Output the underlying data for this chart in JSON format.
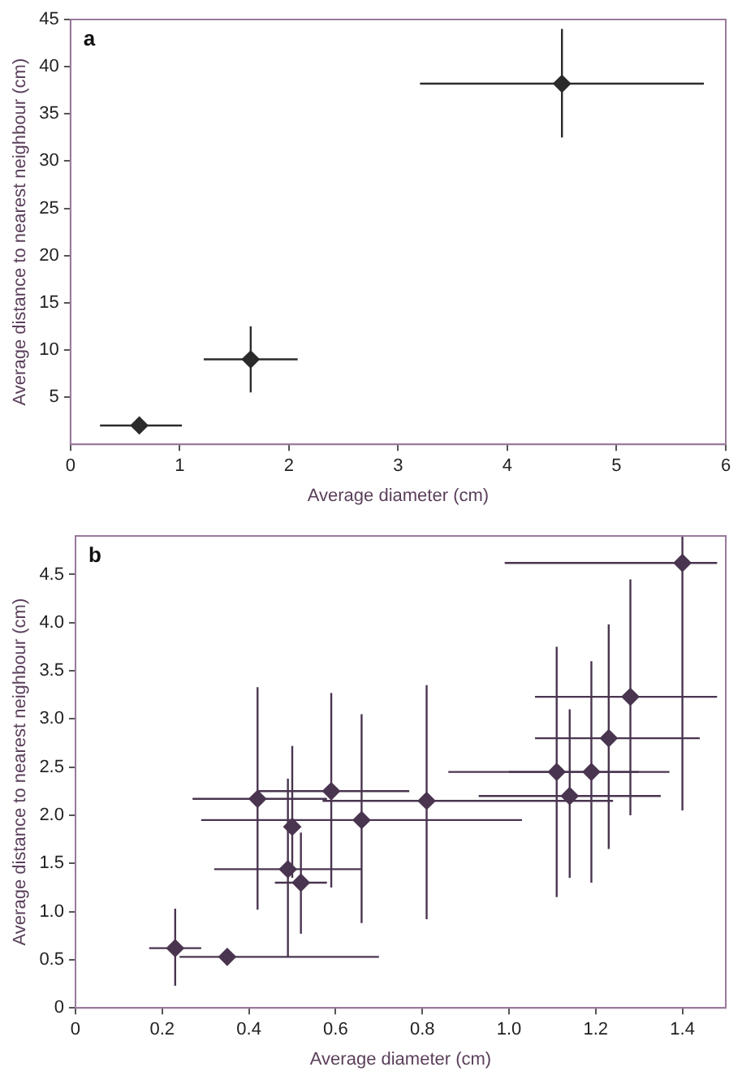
{
  "chart_data": [
    {
      "type": "scatter",
      "xlabel": "Average diameter (cm)",
      "ylabel": "Average distance to nearest neighbour (cm)",
      "annotations": [
        "a"
      ],
      "marker": "diamond",
      "grid": false,
      "legend": false,
      "xlim": [
        0,
        6
      ],
      "xticks": [
        0,
        1,
        2,
        3,
        4,
        5,
        6
      ],
      "ylim": [
        0,
        45
      ],
      "yticks": [
        5,
        10,
        15,
        20,
        25,
        30,
        35,
        40,
        45
      ],
      "series": [
        {
          "color": "#2b2b2b",
          "x": [
            0.63,
            1.65,
            4.5
          ],
          "values": [
            2.0,
            9.0,
            38.2
          ],
          "xerrors": [
            [
              0.27,
              1.02
            ],
            [
              1.22,
              2.08
            ],
            [
              3.2,
              5.8
            ]
          ],
          "errors": [
            null,
            [
              5.5,
              12.5
            ],
            [
              32.5,
              44
            ]
          ]
        }
      ]
    },
    {
      "type": "scatter",
      "xlabel": "Average diameter (cm)",
      "ylabel": "Average distance to nearest neighbour (cm)",
      "annotations": [
        "b"
      ],
      "marker": "diamond",
      "grid": false,
      "legend": false,
      "xlim": [
        0,
        1.5
      ],
      "xticks": [
        0,
        0.2,
        0.4,
        0.6,
        0.8,
        {
          "value": 1,
          "label": "1.0"
        },
        1.2,
        1.4
      ],
      "ylim": [
        0,
        4.9
      ],
      "yticks": [
        0,
        0.5,
        {
          "value": 1,
          "label": "1.0"
        },
        1.5,
        {
          "value": 2,
          "label": "2.0"
        },
        2.5,
        {
          "value": 3,
          "label": "3.0"
        },
        3.5,
        {
          "value": 4,
          "label": "4.0"
        },
        4.5
      ],
      "series": [
        {
          "color": "#4a3550",
          "x": [
            0.23,
            0.35,
            0.42,
            0.49,
            0.5,
            0.52,
            0.59,
            0.66,
            0.81,
            1.11,
            1.14,
            1.19,
            1.23,
            1.28,
            1.4
          ],
          "values": [
            0.62,
            0.53,
            2.17,
            1.44,
            1.88,
            1.3,
            2.25,
            1.95,
            2.15,
            2.45,
            2.2,
            2.45,
            2.8,
            3.23,
            4.62
          ],
          "xerrors": [
            [
              0.17,
              0.29
            ],
            [
              0.24,
              0.7
            ],
            [
              0.27,
              0.58
            ],
            [
              0.32,
              0.66
            ],
            null,
            [
              0.46,
              0.58
            ],
            [
              0.42,
              0.77
            ],
            [
              0.29,
              1.03
            ],
            [
              0.57,
              1.24
            ],
            [
              0.86,
              1.3
            ],
            [
              0.93,
              1.35
            ],
            [
              1.0,
              1.37
            ],
            [
              1.06,
              1.44
            ],
            [
              1.06,
              1.48
            ],
            [
              0.99,
              1.48
            ]
          ],
          "errors": [
            [
              0.23,
              1.03
            ],
            null,
            [
              1.02,
              3.33
            ],
            [
              0.53,
              2.38
            ],
            [
              1.35,
              2.72
            ],
            [
              0.77,
              1.82
            ],
            [
              1.25,
              3.27
            ],
            [
              0.88,
              3.05
            ],
            [
              0.92,
              3.35
            ],
            [
              1.15,
              3.75
            ],
            [
              1.35,
              3.1
            ],
            [
              1.3,
              3.6
            ],
            [
              1.65,
              3.98
            ],
            [
              2.0,
              4.45
            ],
            [
              2.05,
              4.9
            ]
          ]
        }
      ]
    }
  ]
}
